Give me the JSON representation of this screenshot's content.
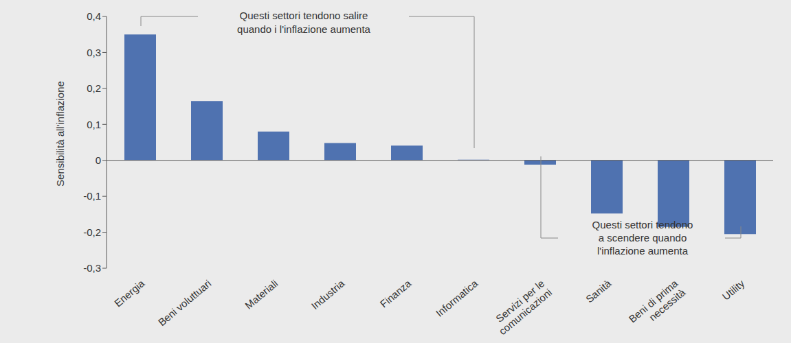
{
  "chart_data": {
    "type": "bar",
    "y_label": "Sensibilità all'inflazione",
    "categories": [
      "Energia",
      "Beni voluttuari",
      "Materiali",
      "Industria",
      "Finanza",
      "Informatica",
      "Servizi per le comunicazioni",
      "Sanità",
      "Beni di prima necessità",
      "Utility"
    ],
    "values": [
      0.35,
      0.165,
      0.08,
      0.048,
      0.041,
      0.002,
      -0.012,
      -0.148,
      -0.185,
      -0.205
    ],
    "color": "#4f72b0",
    "ylim": [
      -0.3,
      0.4
    ],
    "yticks": [
      {
        "value": -0.3,
        "label": "-0,3"
      },
      {
        "value": -0.2,
        "label": "-0,2"
      },
      {
        "value": -0.1,
        "label": "-0,1"
      },
      0,
      {
        "value": 0.1,
        "label": "0,1"
      },
      {
        "value": 0.2,
        "label": "0,2"
      },
      {
        "value": 0.3,
        "label": "0,3"
      },
      {
        "value": 0.4,
        "label": "0,4"
      }
    ],
    "grid": false,
    "annotations": [
      {
        "text": [
          "Questi settori tendono salire",
          "quando i l'inflazione aumenta"
        ]
      },
      {
        "text": [
          "Questi settori tendono",
          "a scendere quando",
          "l'inflazione aumenta"
        ]
      }
    ]
  }
}
